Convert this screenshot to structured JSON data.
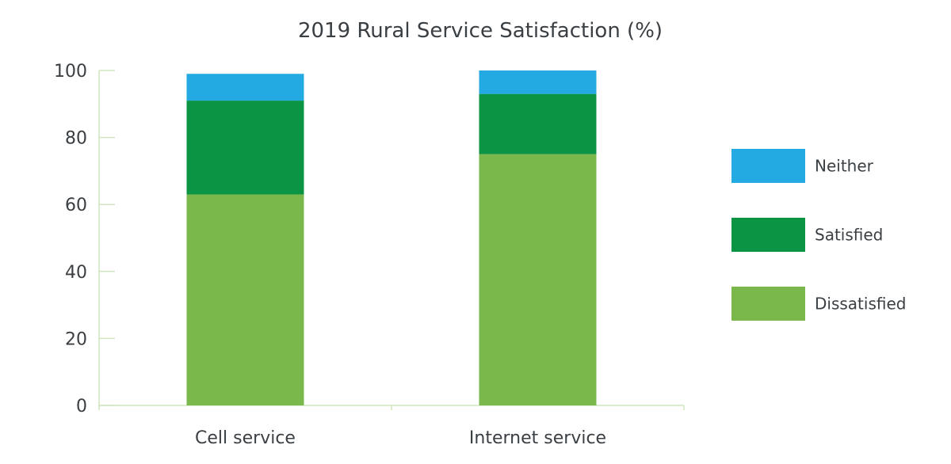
{
  "chart_data": {
    "type": "bar",
    "stacked": true,
    "title": "2019 Rural Service Satisfaction (%)",
    "xlabel": "",
    "ylabel": "",
    "ylim": [
      0,
      100
    ],
    "yticks": [
      0,
      20,
      40,
      60,
      80,
      100
    ],
    "grid": false,
    "legend_position": "right",
    "categories": [
      "Cell service",
      "Internet service"
    ],
    "series": [
      {
        "name": "Dissatisfied",
        "color": "#7ab84b",
        "values": [
          63,
          75
        ]
      },
      {
        "name": "Satisfied",
        "color": "#0b9444",
        "values": [
          28,
          18
        ]
      },
      {
        "name": "Neither",
        "color": "#23aae2",
        "values": [
          8,
          7
        ]
      }
    ],
    "legend_order": [
      "Neither",
      "Satisfied",
      "Dissatisfied"
    ],
    "axis_color": "#cfe6bf"
  }
}
